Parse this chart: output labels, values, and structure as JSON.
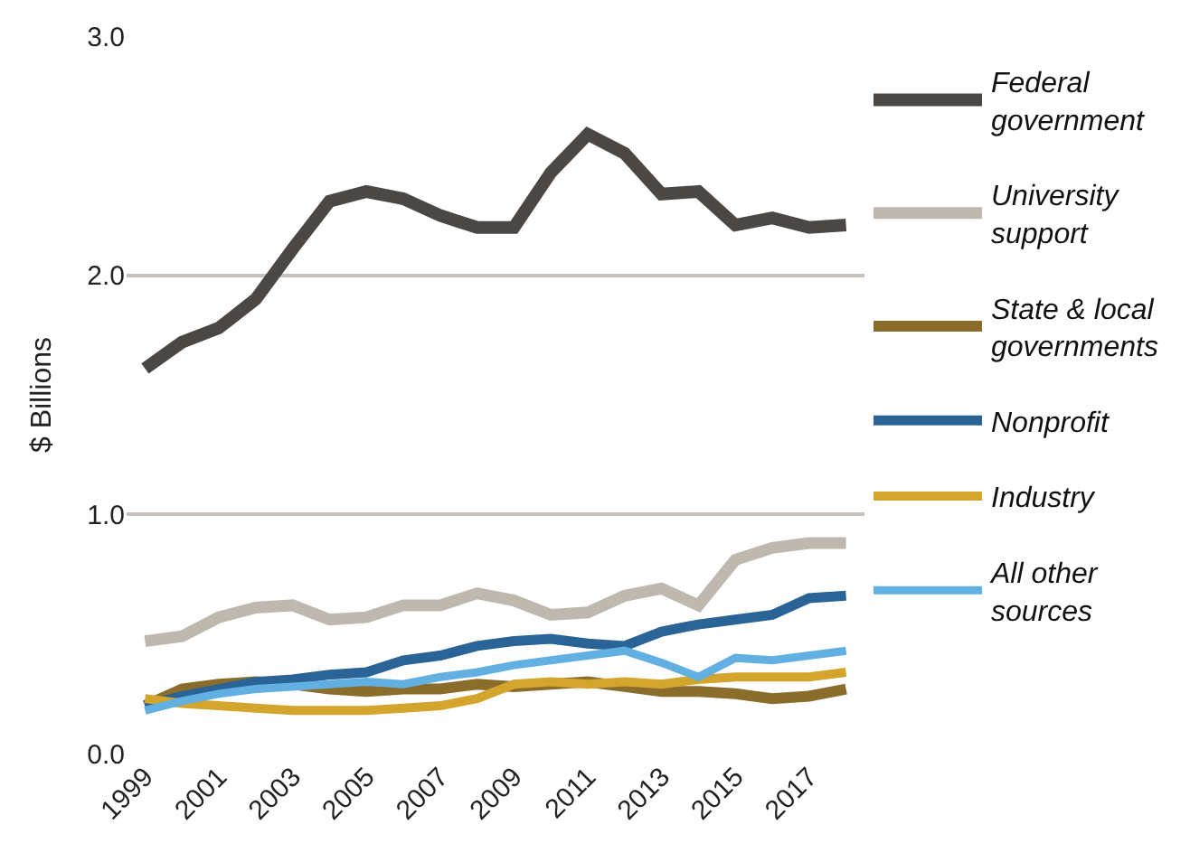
{
  "chart_data": {
    "type": "line",
    "ylabel": "$ Billions",
    "x": [
      1999,
      2000,
      2001,
      2002,
      2003,
      2004,
      2005,
      2006,
      2007,
      2008,
      2009,
      2010,
      2011,
      2012,
      2013,
      2014,
      2015,
      2016,
      2017,
      2018
    ],
    "xlim": [
      1998.5,
      2018.5
    ],
    "xticks": [
      1999,
      2001,
      2003,
      2005,
      2007,
      2009,
      2011,
      2013,
      2015,
      2017
    ],
    "ylim": [
      0,
      3
    ],
    "yticks": [
      {
        "value": 0,
        "label": "0.0"
      },
      {
        "value": 1,
        "label": "1.0"
      },
      {
        "value": 2,
        "label": "2.0"
      },
      {
        "value": 3,
        "label": "3.0"
      }
    ],
    "grid": "y",
    "legend": "right",
    "marker": "none",
    "line_style": "solid",
    "series": [
      {
        "name": "Federal government",
        "color": "#4a4744",
        "values": [
          1.61,
          1.72,
          1.78,
          1.9,
          2.11,
          2.31,
          2.35,
          2.32,
          2.25,
          2.2,
          2.2,
          2.43,
          2.59,
          2.51,
          2.34,
          2.35,
          2.21,
          2.24,
          2.2,
          2.21
        ]
      },
      {
        "name": "University support",
        "color": "#bfb8af",
        "values": [
          0.47,
          0.49,
          0.57,
          0.61,
          0.62,
          0.56,
          0.57,
          0.62,
          0.62,
          0.67,
          0.64,
          0.58,
          0.59,
          0.66,
          0.69,
          0.62,
          0.81,
          0.86,
          0.88,
          0.88
        ]
      },
      {
        "name": "State & local governments",
        "color": "#8a6d2b",
        "values": [
          0.2,
          0.27,
          0.29,
          0.3,
          0.29,
          0.27,
          0.26,
          0.27,
          0.27,
          0.29,
          0.28,
          0.29,
          0.3,
          0.28,
          0.26,
          0.26,
          0.25,
          0.23,
          0.24,
          0.27
        ]
      },
      {
        "name": "Nonprofit",
        "color": "#2a6496",
        "values": [
          0.2,
          0.24,
          0.27,
          0.3,
          0.31,
          0.33,
          0.34,
          0.39,
          0.41,
          0.45,
          0.47,
          0.48,
          0.46,
          0.45,
          0.51,
          0.54,
          0.56,
          0.58,
          0.65,
          0.66
        ]
      },
      {
        "name": "Industry",
        "color": "#d4a52c",
        "values": [
          0.23,
          0.21,
          0.2,
          0.19,
          0.18,
          0.18,
          0.18,
          0.19,
          0.2,
          0.23,
          0.29,
          0.3,
          0.29,
          0.3,
          0.29,
          0.31,
          0.32,
          0.32,
          0.32,
          0.34
        ]
      },
      {
        "name": "All other sources",
        "color": "#62b0e2",
        "values": [
          0.18,
          0.22,
          0.25,
          0.27,
          0.28,
          0.29,
          0.3,
          0.29,
          0.32,
          0.34,
          0.37,
          0.39,
          0.41,
          0.43,
          0.38,
          0.32,
          0.4,
          0.39,
          0.41,
          0.43
        ]
      }
    ]
  }
}
